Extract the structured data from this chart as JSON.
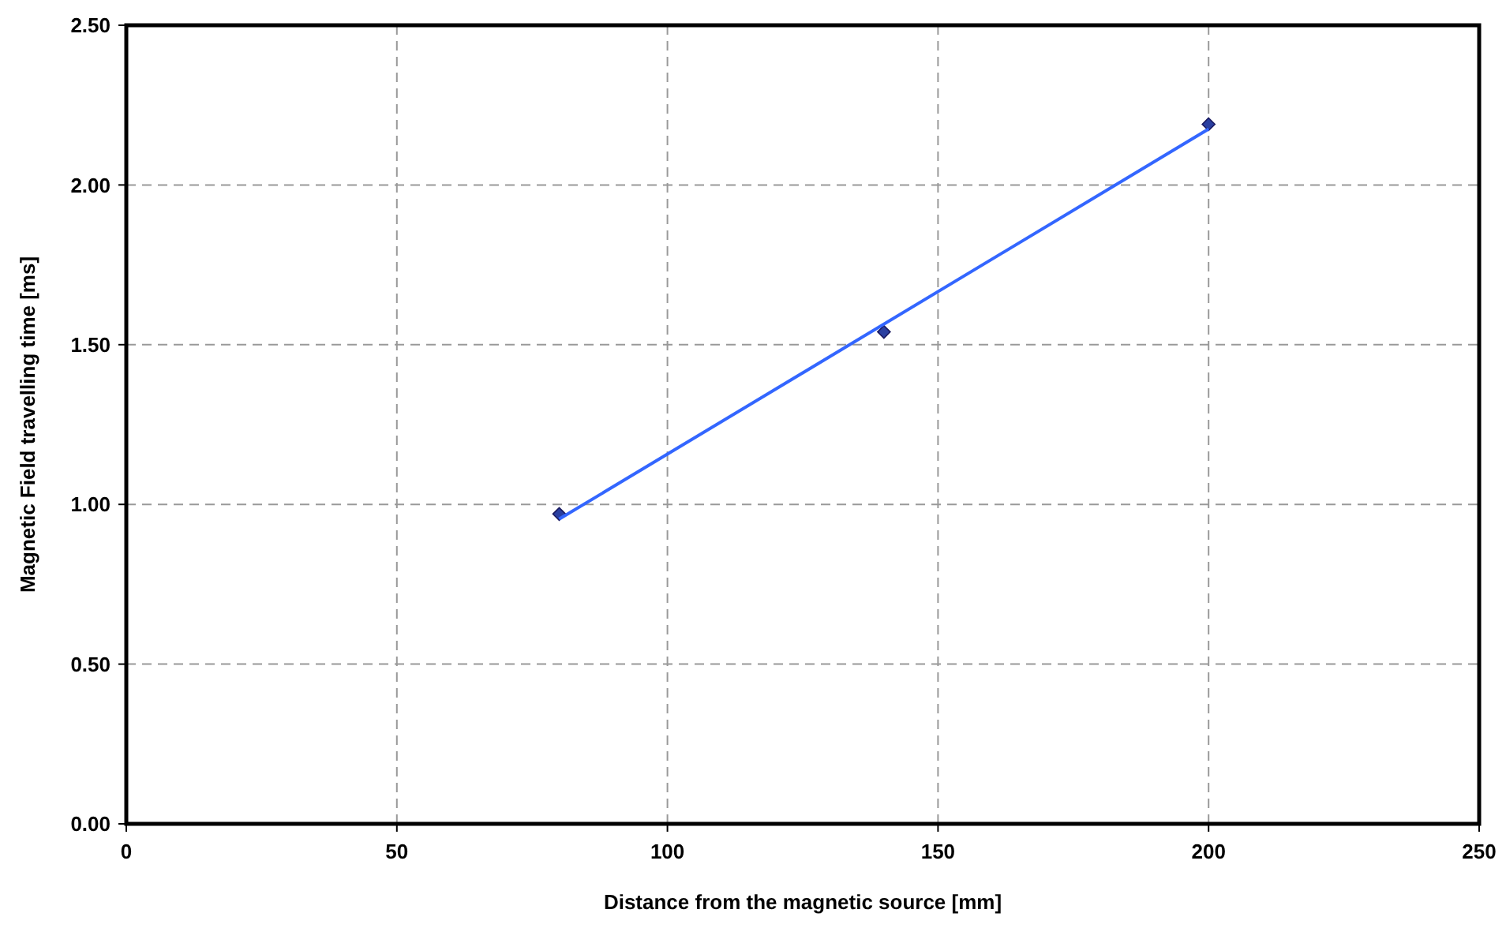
{
  "chart_data": {
    "type": "scatter",
    "xlabel": "Distance from the magnetic source [mm]",
    "ylabel": "Magnetic Field travelling time [ms]",
    "xlim": [
      0,
      250
    ],
    "xticks": [
      0,
      50,
      100,
      150,
      200,
      250
    ],
    "ylim": [
      0,
      2.5
    ],
    "yticks": [
      {
        "value": 0,
        "label": "0.00"
      },
      {
        "value": 0.5,
        "label": "0.50"
      },
      {
        "value": 1,
        "label": "1.00"
      },
      {
        "value": 1.5,
        "label": "1.50"
      },
      {
        "value": 2,
        "label": "2.00"
      },
      {
        "value": 2.5,
        "label": "2.50"
      }
    ],
    "grid": true,
    "series": [
      {
        "x": [
          80,
          140,
          200
        ],
        "values": [
          0.97,
          1.54,
          2.19
        ],
        "color": "#2a3fa0",
        "marker": "diamond"
      },
      {
        "type": "line",
        "x": [
          80,
          200
        ],
        "values": [
          0.954,
          2.175
        ],
        "color": "#3366ff",
        "marker": "none",
        "line_style": "solid"
      }
    ]
  }
}
